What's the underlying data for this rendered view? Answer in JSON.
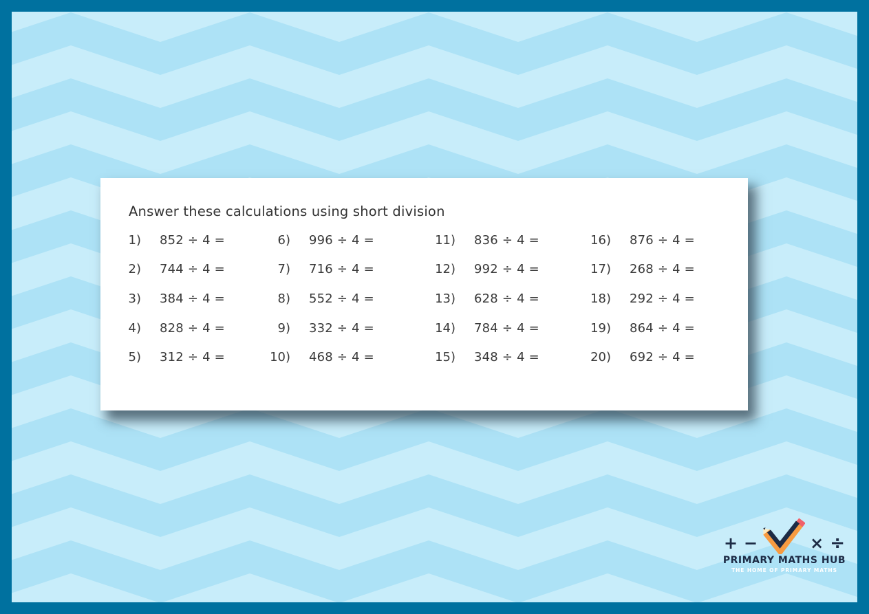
{
  "worksheet": {
    "instruction": "Answer these calculations using short division",
    "problems": [
      {
        "num": "1)",
        "expr": "852 ÷ 4 ="
      },
      {
        "num": "2)",
        "expr": "744 ÷ 4 ="
      },
      {
        "num": "3)",
        "expr": "384 ÷ 4 ="
      },
      {
        "num": "4)",
        "expr": "828 ÷ 4 ="
      },
      {
        "num": "5)",
        "expr": "312 ÷ 4 ="
      },
      {
        "num": "6)",
        "expr": "996 ÷ 4 ="
      },
      {
        "num": "7)",
        "expr": "716 ÷ 4 ="
      },
      {
        "num": "8)",
        "expr": "552 ÷ 4 ="
      },
      {
        "num": "9)",
        "expr": "332 ÷ 4 ="
      },
      {
        "num": "10)",
        "expr": "468 ÷ 4 ="
      },
      {
        "num": "11)",
        "expr": "836 ÷ 4 ="
      },
      {
        "num": "12)",
        "expr": "992 ÷ 4 ="
      },
      {
        "num": "13)",
        "expr": "628 ÷ 4 ="
      },
      {
        "num": "14)",
        "expr": "784 ÷ 4 ="
      },
      {
        "num": "15)",
        "expr": "348 ÷ 4 ="
      },
      {
        "num": "16)",
        "expr": "876 ÷ 4 ="
      },
      {
        "num": "17)",
        "expr": "268 ÷ 4 ="
      },
      {
        "num": "18)",
        "expr": "292 ÷ 4 ="
      },
      {
        "num": "19)",
        "expr": "864 ÷ 4 ="
      },
      {
        "num": "20)",
        "expr": "692 ÷ 4 ="
      }
    ]
  },
  "logo": {
    "symbols": [
      "+",
      "−",
      "×",
      "÷"
    ],
    "title": "PRIMARY MATHS HUB",
    "subtitle": "THE HOME OF PRIMARY MATHS"
  },
  "colors": {
    "frame": "#00719f",
    "chevron_light": "#c8edfa",
    "chevron_dark": "#ade2f6",
    "ink": "#3a3a3a",
    "navy": "#1d2b45",
    "orange": "#f79b41",
    "eraser_pink": "#f0616b",
    "pencil_cream": "#fbeac2"
  }
}
